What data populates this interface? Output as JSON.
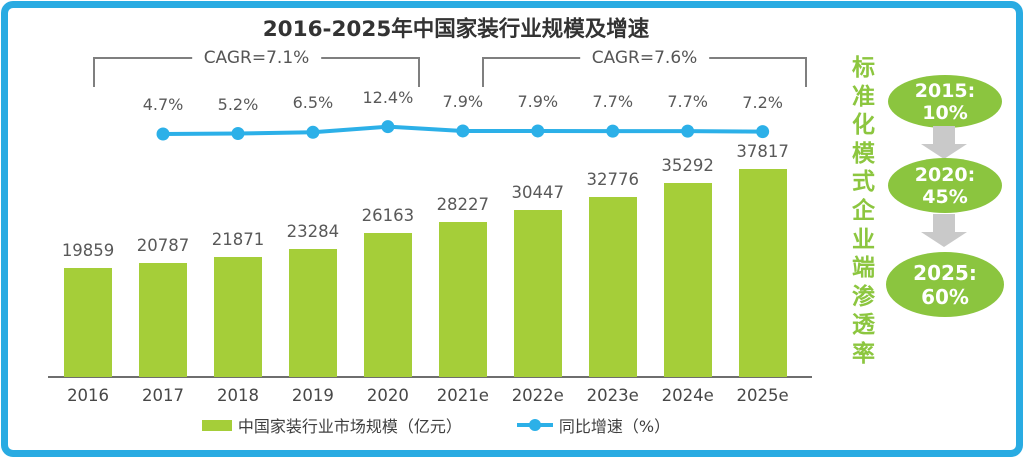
{
  "title": "2016-2025年中国家装行业规模及增速",
  "chart_data": {
    "type": "bar",
    "categories": [
      "2016",
      "2017",
      "2018",
      "2019",
      "2020",
      "2021e",
      "2022e",
      "2023e",
      "2024e",
      "2025e"
    ],
    "series": [
      {
        "name": "中国家装行业市场规模（亿元）",
        "type": "bar",
        "color": "#a5ce39",
        "values": [
          19859,
          20787,
          21871,
          23284,
          26163,
          28227,
          30447,
          32776,
          35292,
          37817
        ]
      },
      {
        "name": "同比增速（%）",
        "type": "line",
        "color": "#2cb0e8",
        "start_category": "2017",
        "values": [
          4.7,
          5.2,
          6.5,
          12.4,
          7.9,
          7.9,
          7.7,
          7.7,
          7.2
        ],
        "labels": [
          "4.7%",
          "5.2%",
          "6.5%",
          "12.4%",
          "7.9%",
          "7.9%",
          "7.7%",
          "7.7%",
          "7.2%"
        ]
      }
    ],
    "annotations": [
      {
        "label": "CAGR=7.1%",
        "from": "2016",
        "to": "2020"
      },
      {
        "label": "CAGR=7.6%",
        "from": "2021e",
        "to": "2025e"
      }
    ],
    "xlabel": "",
    "ylabel": "",
    "ylim": [
      0,
      40000
    ],
    "y2lim": [
      0,
      14
    ],
    "grid": false,
    "legend_position": "bottom"
  },
  "side_panel": {
    "vertical_label": "标准化模式企业端渗透率",
    "milestones": [
      {
        "line1": "2015:",
        "line2": "10%"
      },
      {
        "line1": "2020:",
        "line2": "45%"
      },
      {
        "line1": "2025:",
        "line2": "60%"
      }
    ]
  },
  "colors": {
    "frame_blue": "#29abe2",
    "bar_green": "#a5ce39",
    "line_blue": "#2cb0e8",
    "side_green": "#8cc63f",
    "milestone_green": "#8bc53f",
    "arrow_gray": "#c9c9c9",
    "bracket_gray": "#7f7f7f",
    "label_gray": "#595959"
  }
}
